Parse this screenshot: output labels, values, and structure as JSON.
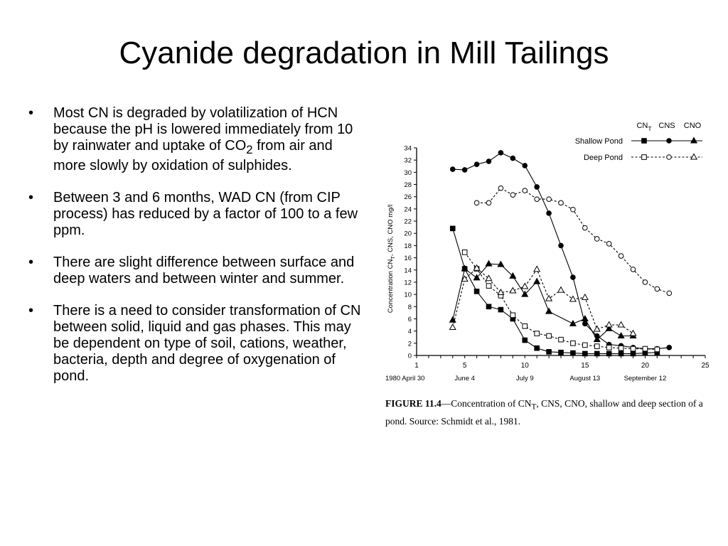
{
  "slide": {
    "title": "Cyanide degradation in Mill Tailings",
    "bullet_marker": "•",
    "bullets": [
      {
        "pre": "Most CN is degraded by volatilization of HCN because the pH is lowered immediately from 10 by rainwater and uptake of CO",
        "sub": "2",
        "post": " from air and more slowly by oxidation of sulphides."
      },
      {
        "pre": "Between 3 and 6 months, WAD CN (from CIP process) has reduced by a factor of 100 to a few ppm.",
        "sub": "",
        "post": ""
      },
      {
        "pre": "There are slight difference between surface and deep waters and between winter and summer.",
        "sub": "",
        "post": ""
      },
      {
        "pre": "There is a need to consider transformation of CN between solid, liquid and gas phases. This may be dependent on type of soil, cations, weather, bacteria, depth and degree of oxygenation of pond.",
        "sub": "",
        "post": ""
      }
    ]
  },
  "caption": {
    "label": "FIGURE 11.4",
    "text_a": "—Concentration of CN",
    "sub": "T",
    "text_b": ", CNS, CNO, shallow and deep section of a pond.  Source:  Schmidt et al., 1981."
  },
  "chart_data": {
    "type": "line",
    "ylabel_pre": "Concentration CN",
    "ylabel_sub": "T",
    "ylabel_post": ", CNS, CNO mg/l",
    "xlim": [
      1,
      25
    ],
    "ylim": [
      0,
      34
    ],
    "x_ticks": [
      1,
      5,
      10,
      15,
      20,
      25
    ],
    "y_ticks": [
      0,
      2,
      4,
      6,
      8,
      10,
      12,
      14,
      16,
      18,
      20,
      22,
      24,
      26,
      28,
      30,
      32,
      34
    ],
    "date_labels": [
      {
        "x": 1,
        "label": "1980 April 30"
      },
      {
        "x": 5,
        "label": "June 4"
      },
      {
        "x": 10,
        "label": "July 9"
      },
      {
        "x": 15,
        "label": "August 13"
      },
      {
        "x": 20,
        "label": "September 12"
      }
    ],
    "legend": {
      "placement": "top-right",
      "columns": [
        {
          "main": "CN",
          "sub": "T"
        },
        {
          "main": "CNS",
          "sub": ""
        },
        {
          "main": "CNO",
          "sub": ""
        }
      ],
      "rows": [
        "Shallow Pond",
        "Deep Pond"
      ]
    },
    "series": [
      {
        "id": "shallow-cnt",
        "marker": "square-filled",
        "dash": false,
        "points": [
          [
            4,
            20.8
          ],
          [
            5,
            14.2
          ],
          [
            6,
            10.5
          ],
          [
            7,
            8
          ],
          [
            8,
            7.5
          ],
          [
            9,
            6
          ],
          [
            10,
            2.5
          ],
          [
            11,
            1.2
          ],
          [
            12,
            0.6
          ],
          [
            13,
            0.5
          ],
          [
            14,
            0.4
          ],
          [
            15,
            0.3
          ],
          [
            16,
            0.3
          ],
          [
            17,
            0.3
          ],
          [
            18,
            0.3
          ],
          [
            19,
            0.3
          ],
          [
            20,
            0.4
          ],
          [
            21,
            0.5
          ]
        ]
      },
      {
        "id": "shallow-cns",
        "marker": "circle-filled",
        "dash": false,
        "points": [
          [
            4,
            30.5
          ],
          [
            5,
            30.4
          ],
          [
            6,
            31.3
          ],
          [
            7,
            31.8
          ],
          [
            8,
            33.2
          ],
          [
            9,
            32.3
          ],
          [
            10,
            31.1
          ],
          [
            11,
            27.6
          ],
          [
            12,
            23.3
          ],
          [
            13,
            18
          ],
          [
            14,
            12.8
          ],
          [
            15,
            5.2
          ],
          [
            16,
            3.2
          ],
          [
            17,
            1.8
          ],
          [
            18,
            1.6
          ],
          [
            19,
            1.3
          ],
          [
            20,
            1.1
          ],
          [
            21,
            1.1
          ],
          [
            22,
            1.3
          ]
        ]
      },
      {
        "id": "shallow-cno",
        "marker": "triangle-filled",
        "dash": false,
        "points": [
          [
            4,
            5.8
          ],
          [
            5,
            14.2
          ],
          [
            6,
            12.7
          ],
          [
            7,
            15
          ],
          [
            8,
            14.9
          ],
          [
            9,
            13
          ],
          [
            10,
            10
          ],
          [
            11,
            12.1
          ],
          [
            12,
            7.2
          ],
          [
            14,
            5.2
          ],
          [
            15,
            6
          ],
          [
            16,
            2.6
          ],
          [
            17,
            4.4
          ],
          [
            18,
            3.2
          ],
          [
            19,
            3.2
          ]
        ]
      },
      {
        "id": "deep-cnt",
        "marker": "square-open",
        "dash": true,
        "points": [
          [
            5,
            16.9
          ],
          [
            6,
            14.2
          ],
          [
            7,
            11.4
          ],
          [
            8,
            9.8
          ],
          [
            9,
            6.6
          ],
          [
            10,
            4.8
          ],
          [
            11,
            3.6
          ],
          [
            12,
            3.2
          ],
          [
            13,
            2.6
          ],
          [
            14,
            2
          ],
          [
            15,
            1.7
          ],
          [
            16,
            1.5
          ],
          [
            17,
            1.3
          ],
          [
            18,
            1.2
          ],
          [
            19,
            1.1
          ],
          [
            20,
            1.1
          ],
          [
            21,
            1
          ]
        ]
      },
      {
        "id": "deep-cns",
        "marker": "circle-open",
        "dash": true,
        "points": [
          [
            6,
            25
          ],
          [
            7,
            25
          ],
          [
            8,
            27.4
          ],
          [
            9,
            26.3
          ],
          [
            10,
            27
          ],
          [
            11,
            25.6
          ],
          [
            12,
            25.6
          ],
          [
            13,
            25
          ],
          [
            14,
            23.9
          ],
          [
            15,
            20.9
          ],
          [
            16,
            19.1
          ],
          [
            17,
            18.3
          ],
          [
            18,
            16.3
          ],
          [
            19,
            14.1
          ],
          [
            20,
            12
          ],
          [
            21,
            10.9
          ],
          [
            22,
            10.2
          ]
        ]
      },
      {
        "id": "deep-cno",
        "marker": "triangle-open",
        "dash": true,
        "points": [
          [
            4,
            4.6
          ],
          [
            5,
            12.5
          ],
          [
            6,
            14.3
          ],
          [
            7,
            12.6
          ],
          [
            8,
            10.3
          ],
          [
            9,
            10.6
          ],
          [
            10,
            11.3
          ],
          [
            11,
            14.1
          ],
          [
            12,
            9.3
          ],
          [
            13,
            10.7
          ],
          [
            14,
            9.2
          ],
          [
            15,
            9.5
          ],
          [
            16,
            4.3
          ],
          [
            17,
            5
          ],
          [
            18,
            5
          ],
          [
            19,
            3.6
          ]
        ]
      }
    ]
  }
}
